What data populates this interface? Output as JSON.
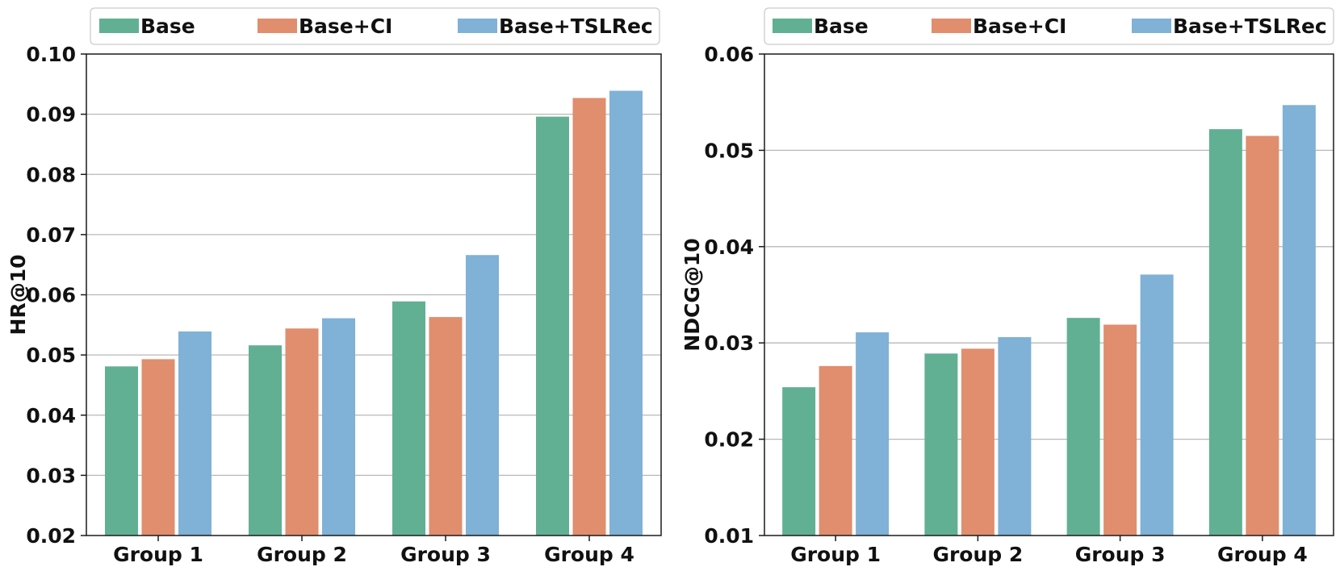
{
  "colors": {
    "base": "#62b094",
    "base_ci": "#e08e6d",
    "base_tslrec": "#80b1d6",
    "grid": "#b8b8b8",
    "axis": "#1a1a1a"
  },
  "chart_data": [
    {
      "type": "bar",
      "title": "",
      "xlabel": "",
      "ylabel": "HR@10",
      "ylim": [
        0.02,
        0.1
      ],
      "yticks": [
        "0.02",
        "0.03",
        "0.04",
        "0.05",
        "0.06",
        "0.07",
        "0.08",
        "0.09",
        "0.10"
      ],
      "grid": "horizontal",
      "legend_position": "top",
      "categories": [
        "Group 1",
        "Group 2",
        "Group 3",
        "Group 4"
      ],
      "series": [
        {
          "name": "Base",
          "color": "#62b094",
          "values": [
            0.0481,
            0.0516,
            0.0589,
            0.0896
          ]
        },
        {
          "name": "Base+CI",
          "color": "#e08e6d",
          "values": [
            0.0493,
            0.0544,
            0.0563,
            0.0927
          ]
        },
        {
          "name": "Base+TSLRec",
          "color": "#80b1d6",
          "values": [
            0.0539,
            0.0561,
            0.0666,
            0.0939
          ]
        }
      ]
    },
    {
      "type": "bar",
      "title": "",
      "xlabel": "",
      "ylabel": "NDCG@10",
      "ylim": [
        0.01,
        0.06
      ],
      "yticks": [
        "0.01",
        "0.02",
        "0.03",
        "0.04",
        "0.05",
        "0.06"
      ],
      "grid": "horizontal",
      "legend_position": "top",
      "categories": [
        "Group 1",
        "Group 2",
        "Group 3",
        "Group 4"
      ],
      "series": [
        {
          "name": "Base",
          "color": "#62b094",
          "values": [
            0.0254,
            0.0289,
            0.0326,
            0.0522
          ]
        },
        {
          "name": "Base+CI",
          "color": "#e08e6d",
          "values": [
            0.0276,
            0.0294,
            0.0319,
            0.0515
          ]
        },
        {
          "name": "Base+TSLRec",
          "color": "#80b1d6",
          "values": [
            0.0311,
            0.0306,
            0.0371,
            0.0547
          ]
        }
      ]
    }
  ]
}
